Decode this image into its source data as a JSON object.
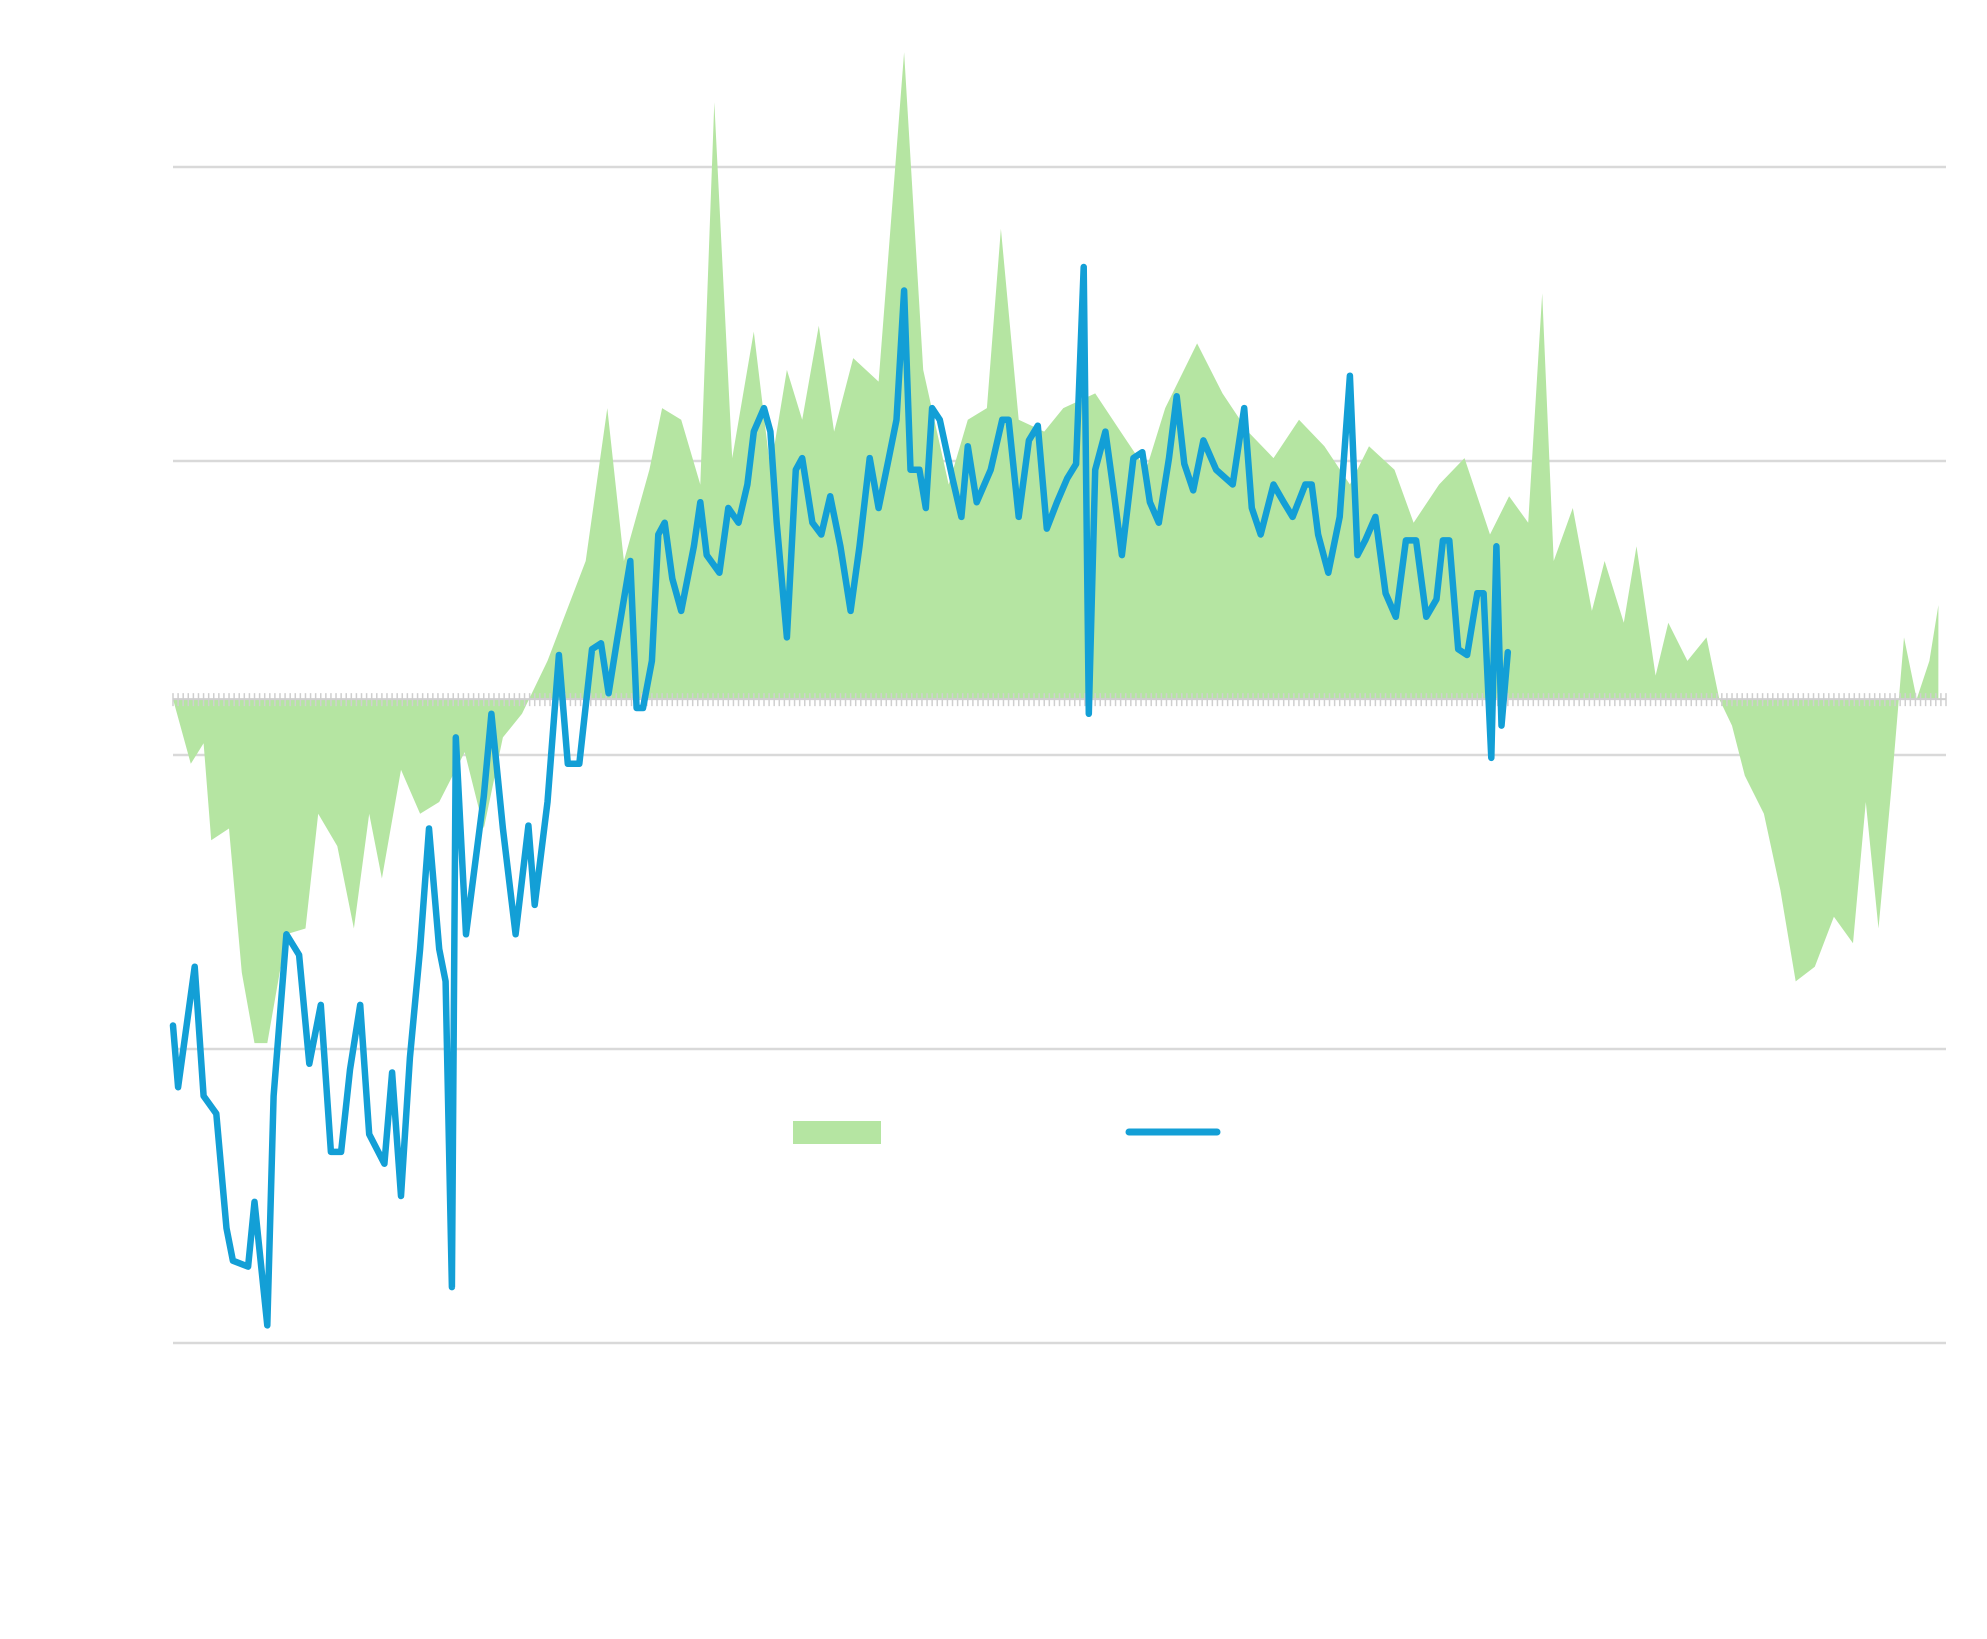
{
  "chart_data": {
    "type": "area",
    "title": "",
    "xlabel": "",
    "ylabel": "",
    "xlim": [
      0,
      348
    ],
    "ylim": [
      -20,
      20
    ],
    "gridlines_y": [
      -20,
      -10,
      0,
      10,
      20
    ],
    "grid": true,
    "area_baseline": 1.9,
    "legend_position": "bottom-center",
    "colors": {
      "area": "#b5e5a2",
      "line": "#139fd6",
      "grid": "#d9d9d9",
      "tick": "#cfcfcf"
    },
    "series": [
      {
        "name": "",
        "type": "area",
        "x": [
          0,
          3.5,
          6,
          7.5,
          11,
          13.5,
          16,
          18.5,
          22.25,
          26,
          28.5,
          32.25,
          35.5,
          38.5,
          41,
          44.75,
          48.5,
          52.25,
          57.25,
          61,
          64.75,
          68.5,
          73.5,
          77.25,
          81,
          85.25,
          88.5,
          93.5,
          96,
          99.75,
          103.5,
          106.25,
          109.75,
          114,
          117.25,
          120.5,
          123.5,
          126.75,
          129.75,
          133.5,
          138.5,
          143.5,
          147.25,
          152.25,
          156,
          159.75,
          162.5,
          166,
          171,
          174.75,
          181,
          186,
          191,
          194.75,
          201,
          206,
          211,
          216,
          221,
          226,
          231,
          234.75,
          239.75,
          243.5,
          248.5,
          253.5,
          258.5,
          262.25,
          266,
          268.75,
          271,
          274.75,
          278.5,
          281,
          284.75,
          287.25,
          291,
          293.5,
          297.25,
          301,
          303.5,
          306,
          308.5,
          312.25,
          315.5,
          318.5,
          322.25,
          326,
          329.75,
          332.25,
          334.75,
          337.25,
          339.75,
          342.25,
          344.75,
          346.5
        ],
        "values": [
          1.9,
          -0.3,
          0.4,
          -2.9,
          -2.5,
          -7.4,
          -9.8,
          -9.8,
          -6.1,
          -5.9,
          -2.0,
          -3.1,
          -5.9,
          -2.0,
          -4.2,
          -0.5,
          -2.0,
          -1.6,
          0.1,
          -2.5,
          0.6,
          1.4,
          3.2,
          4.9,
          6.6,
          11.8,
          6.6,
          9.7,
          11.8,
          11.4,
          9.2,
          22.2,
          10.1,
          14.4,
          9.7,
          13.1,
          11.4,
          14.6,
          11.0,
          13.5,
          12.7,
          23.9,
          13.1,
          9.2,
          11.4,
          11.8,
          17.9,
          11.4,
          11.0,
          11.8,
          12.3,
          11.0,
          9.7,
          11.8,
          14.0,
          12.3,
          11.0,
          10.1,
          11.4,
          10.5,
          9.2,
          10.5,
          9.7,
          7.9,
          9.2,
          10.1,
          7.5,
          8.8,
          7.9,
          15.7,
          6.6,
          8.4,
          4.9,
          6.6,
          4.5,
          7.1,
          2.7,
          4.5,
          3.2,
          4.0,
          1.9,
          1.0,
          -0.7,
          -2.0,
          -4.6,
          -7.7,
          -7.2,
          -5.5,
          -6.4,
          -1.6,
          -5.9,
          -1.2,
          4.0,
          1.9,
          3.2,
          5.1
        ]
      },
      {
        "name": "",
        "type": "line",
        "x": [
          0,
          1,
          4.25,
          6,
          8.5,
          10.5,
          11.75,
          14.75,
          16,
          18.5,
          19.75,
          22.25,
          24.75,
          26.75,
          29,
          31,
          33,
          34.75,
          36.75,
          38.5,
          41.5,
          43,
          44.75,
          46.5,
          48.5,
          50.25,
          52.25,
          53.5,
          54.75,
          55.5,
          57.5,
          61,
          62.5,
          64.75,
          67.25,
          69.75,
          71,
          73.5,
          75.75,
          77.5,
          79.75,
          82.25,
          84,
          85.5,
          87.25,
          89.75,
          91,
          92.25,
          94,
          95.25,
          96.5,
          98,
          99.75,
          102.25,
          103.5,
          104.75,
          107.25,
          109,
          111,
          112.75,
          114,
          116,
          117.25,
          118.5,
          120.5,
          122.25,
          123.5,
          125.5,
          127.25,
          129,
          131,
          133,
          134.75,
          136.75,
          138.5,
          140.5,
          142,
          143.5,
          144.75,
          146.5,
          147.75,
          149,
          150.5,
          153,
          154.75,
          156,
          157.75,
          160.5,
          162.75,
          164,
          166,
          168,
          169.75,
          171.5,
          173.5,
          175.5,
          177.25,
          178.75,
          179.75,
          181,
          183,
          184.75,
          186.25,
          188.5,
          190.25,
          191.75,
          193.5,
          195.5,
          197,
          198.5,
          200.25,
          202.25,
          204.75,
          208,
          210.25,
          211.75,
          213.5,
          216,
          218,
          219.75,
          222.25,
          223.5,
          224.75,
          226.75,
          229,
          231,
          232.5,
          234,
          236,
          238,
          240,
          242,
          244,
          246,
          248,
          249.25,
          250.5,
          252.25,
          254,
          256,
          257.25,
          258.75,
          259.75,
          260.75,
          262
        ],
        "values": [
          -9.2,
          -11.3,
          -7.2,
          -11.6,
          -12.2,
          -16.1,
          -17.2,
          -17.4,
          -15.2,
          -19.4,
          -11.6,
          -6.1,
          -6.8,
          -10.5,
          -8.5,
          -13.5,
          -13.5,
          -10.7,
          -8.5,
          -12.9,
          -13.9,
          -10.8,
          -15.0,
          -10.3,
          -6.6,
          -2.5,
          -6.6,
          -7.7,
          -18.1,
          0.6,
          -6.1,
          -1.4,
          1.4,
          -2.5,
          -6.1,
          -2.4,
          -5.1,
          -1.6,
          3.4,
          -0.3,
          -0.3,
          3.6,
          3.8,
          2.1,
          4.0,
          6.6,
          1.6,
          1.6,
          3.2,
          7.5,
          7.9,
          6.0,
          4.9,
          7.1,
          8.6,
          6.8,
          6.2,
          8.4,
          7.9,
          9.2,
          11.0,
          11.8,
          11.0,
          7.9,
          4.0,
          9.7,
          10.1,
          7.9,
          7.5,
          8.8,
          7.1,
          4.9,
          7.1,
          10.1,
          8.4,
          10.1,
          11.4,
          15.8,
          9.7,
          9.7,
          8.4,
          11.8,
          11.4,
          9.4,
          8.1,
          10.5,
          8.6,
          9.7,
          11.4,
          11.4,
          8.1,
          10.7,
          11.2,
          7.7,
          8.6,
          9.4,
          9.9,
          16.6,
          1.4,
          9.7,
          11.0,
          8.8,
          6.8,
          10.1,
          10.3,
          8.6,
          7.9,
          10.1,
          12.2,
          9.9,
          9.0,
          10.7,
          9.7,
          9.2,
          11.8,
          8.4,
          7.5,
          9.2,
          8.6,
          8.1,
          9.2,
          9.2,
          7.5,
          6.2,
          8.1,
          12.9,
          6.8,
          7.3,
          8.1,
          5.5,
          4.7,
          7.3,
          7.3,
          4.7,
          5.3,
          7.3,
          7.3,
          3.6,
          3.4,
          5.5,
          5.5,
          -0.1,
          7.1,
          1.0,
          3.5
        ]
      }
    ]
  }
}
